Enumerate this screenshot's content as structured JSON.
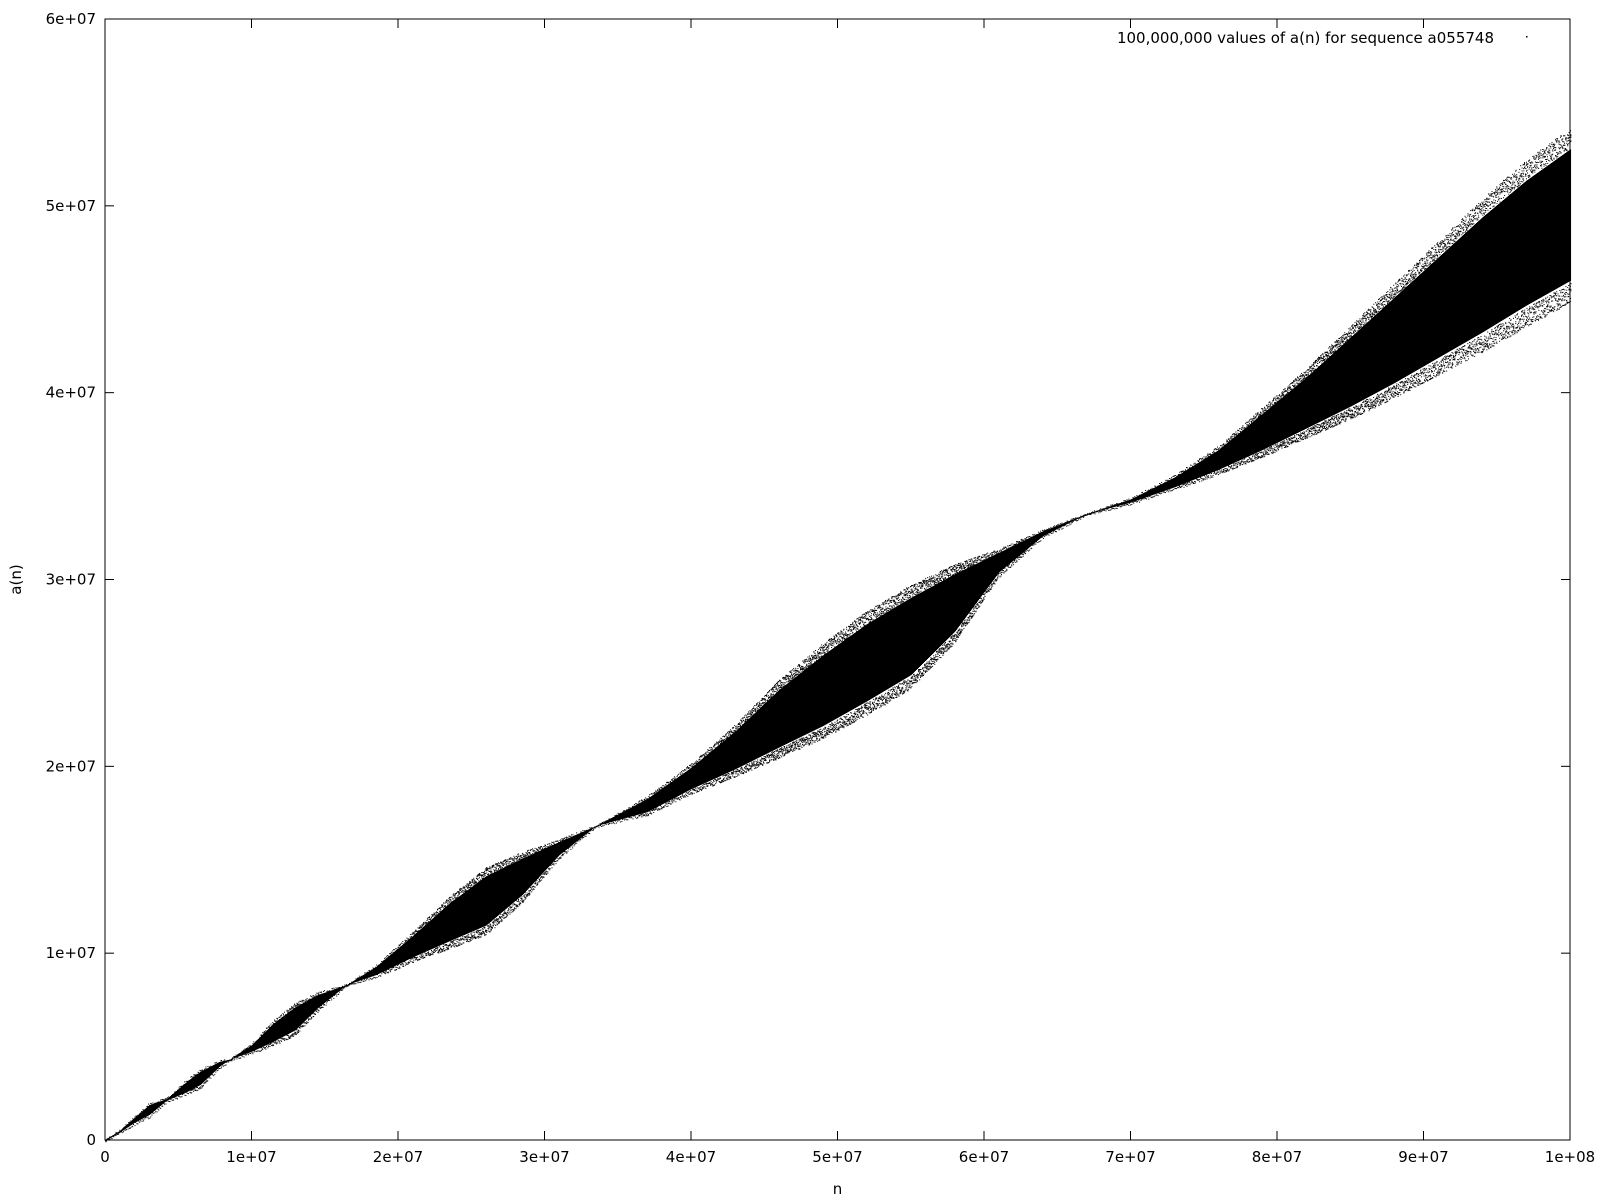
{
  "chart_data": {
    "type": "scatter",
    "title": "",
    "xlabel": "n",
    "ylabel": "a(n)",
    "xlim": [
      0,
      100000000
    ],
    "ylim": [
      0,
      60000000
    ],
    "grid": false,
    "legend_position": "top-right",
    "point_color": "#000000",
    "x_ticks": [
      {
        "value": 0,
        "label": "0"
      },
      {
        "value": 10000000,
        "label": "1e+07"
      },
      {
        "value": 20000000,
        "label": "2e+07"
      },
      {
        "value": 30000000,
        "label": "3e+07"
      },
      {
        "value": 40000000,
        "label": "4e+07"
      },
      {
        "value": 50000000,
        "label": "5e+07"
      },
      {
        "value": 60000000,
        "label": "6e+07"
      },
      {
        "value": 70000000,
        "label": "7e+07"
      },
      {
        "value": 80000000,
        "label": "8e+07"
      },
      {
        "value": 90000000,
        "label": "9e+07"
      },
      {
        "value": 100000000,
        "label": "1e+08"
      }
    ],
    "y_ticks": [
      {
        "value": 0,
        "label": "0"
      },
      {
        "value": 10000000,
        "label": "1e+07"
      },
      {
        "value": 20000000,
        "label": "2e+07"
      },
      {
        "value": 30000000,
        "label": "3e+07"
      },
      {
        "value": 40000000,
        "label": "4e+07"
      },
      {
        "value": 50000000,
        "label": "5e+07"
      },
      {
        "value": 60000000,
        "label": "6e+07"
      }
    ],
    "series": [
      {
        "name": "100,000,000 values of a(n) for sequence a055748",
        "band": {
          "x": [
            0,
            1000000,
            2000000,
            3000000,
            4200000,
            5500000,
            6500000,
            7800000,
            8500000,
            10000000,
            11500000,
            13000000,
            14500000,
            16500000,
            18500000,
            21000000,
            23500000,
            26000000,
            28500000,
            31000000,
            33500000,
            37000000,
            40000000,
            43000000,
            46000000,
            49000000,
            52000000,
            55000000,
            58000000,
            61000000,
            64000000,
            67000000,
            70000000,
            73000000,
            76000000,
            79000000,
            82000000,
            85000000,
            88000000,
            91000000,
            94000000,
            97000000,
            100000000
          ],
          "upper": [
            0,
            500000,
            1200000,
            1900000,
            2200000,
            3100000,
            3700000,
            4200000,
            4300000,
            5100000,
            6300000,
            7200000,
            7800000,
            8300000,
            9300000,
            11000000,
            12800000,
            14300000,
            15200000,
            16000000,
            16800000,
            18300000,
            20000000,
            22000000,
            24300000,
            26200000,
            27900000,
            29300000,
            30500000,
            31500000,
            32600000,
            33500000,
            34300000,
            35500000,
            37000000,
            39000000,
            41000000,
            43200000,
            45400000,
            47600000,
            49800000,
            51800000,
            53500000
          ],
          "lower": [
            0,
            400000,
            900000,
            1300000,
            2100000,
            2500000,
            2900000,
            3900000,
            4300000,
            4700000,
            5200000,
            5800000,
            7000000,
            8300000,
            8800000,
            9700000,
            10500000,
            11300000,
            13000000,
            15200000,
            16800000,
            17500000,
            18700000,
            19700000,
            20800000,
            21900000,
            23200000,
            24600000,
            27000000,
            30300000,
            32300000,
            33500000,
            34100000,
            34900000,
            35800000,
            36800000,
            37900000,
            39000000,
            40200000,
            41500000,
            42800000,
            44200000,
            45500000
          ]
        }
      }
    ]
  }
}
